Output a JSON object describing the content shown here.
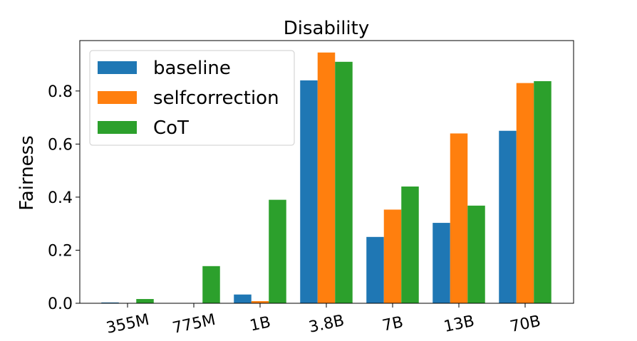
{
  "chart_data": {
    "type": "bar",
    "title": "Disability",
    "xlabel": "",
    "ylabel": "Fairness",
    "ylim": [
      0,
      0.99
    ],
    "yticks": [
      "0.0",
      "0.2",
      "0.4",
      "0.6",
      "0.8"
    ],
    "categories": [
      "355M",
      "775M",
      "1B",
      "3.8B",
      "7B",
      "13B",
      "70B"
    ],
    "series": [
      {
        "name": "baseline",
        "color": "#1f77b4",
        "values": [
          0.003,
          0.0,
          0.033,
          0.84,
          0.25,
          0.303,
          0.65
        ]
      },
      {
        "name": "selfcorrection",
        "color": "#ff7f0e",
        "values": [
          0.0,
          0.0,
          0.008,
          0.945,
          0.353,
          0.64,
          0.83
        ]
      },
      {
        "name": "CoT",
        "color": "#2ca02c",
        "values": [
          0.016,
          0.14,
          0.39,
          0.91,
          0.44,
          0.368,
          0.837
        ]
      }
    ],
    "legend_position": "top-left",
    "grid": false
  }
}
